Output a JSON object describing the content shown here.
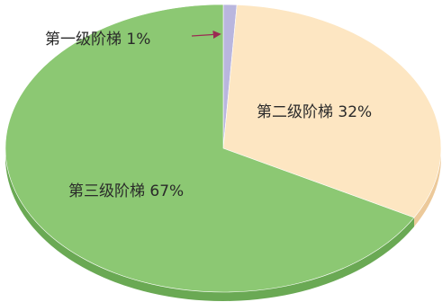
{
  "chart_data": {
    "type": "pie",
    "style": "3d-ellipse",
    "slices": [
      {
        "label": "第一级阶梯",
        "value_label": "1%",
        "value": 1,
        "color": "#b9b6de",
        "side_color": "#9d9ac8"
      },
      {
        "label": "第二级阶梯",
        "value_label": "32%",
        "value": 32,
        "color": "#fde6c2",
        "side_color": "#ecc99a"
      },
      {
        "label": "第三级阶梯",
        "value_label": "67%",
        "value": 67,
        "color": "#8cc873",
        "side_color": "#6aa954"
      }
    ],
    "arrow_color": "#9b2a52",
    "legend": "none"
  }
}
